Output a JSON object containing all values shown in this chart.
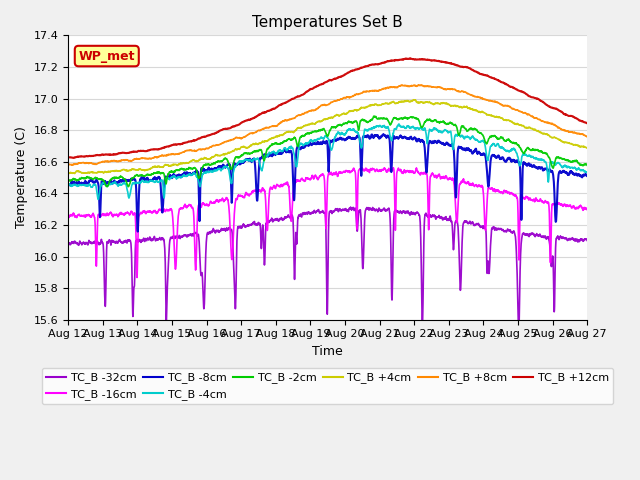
{
  "title": "Temperatures Set B",
  "xlabel": "Time",
  "ylabel": "Temperature (C)",
  "ylim": [
    15.6,
    17.4
  ],
  "x_tick_labels": [
    "Aug 12",
    "Aug 13",
    "Aug 14",
    "Aug 15",
    "Aug 16",
    "Aug 17",
    "Aug 18",
    "Aug 19",
    "Aug 20",
    "Aug 21",
    "Aug 22",
    "Aug 23",
    "Aug 24",
    "Aug 25",
    "Aug 26",
    "Aug 27"
  ],
  "legend_entries": [
    {
      "label": "TC_B -32cm",
      "color": "#9900cc"
    },
    {
      "label": "TC_B -16cm",
      "color": "#ff00ff"
    },
    {
      "label": "TC_B -8cm",
      "color": "#0000cc"
    },
    {
      "label": "TC_B -4cm",
      "color": "#00cccc"
    },
    {
      "label": "TC_B -2cm",
      "color": "#00cc00"
    },
    {
      "label": "TC_B +4cm",
      "color": "#cccc00"
    },
    {
      "label": "TC_B +8cm",
      "color": "#ff8800"
    },
    {
      "label": "TC_B +12cm",
      "color": "#cc0000"
    }
  ],
  "wp_met_box": {
    "label": "WP_met",
    "facecolor": "#ffff99",
    "edgecolor": "#cc0000",
    "textcolor": "#cc0000",
    "fontsize": 9
  },
  "background_color": "#f0f0f0",
  "plot_background": "#ffffff",
  "grid_color": "#d8d8d8",
  "fontsize_ticks": 8,
  "fontsize_labels": 9,
  "fontsize_title": 11,
  "num_points": 3000,
  "random_seed": 42
}
